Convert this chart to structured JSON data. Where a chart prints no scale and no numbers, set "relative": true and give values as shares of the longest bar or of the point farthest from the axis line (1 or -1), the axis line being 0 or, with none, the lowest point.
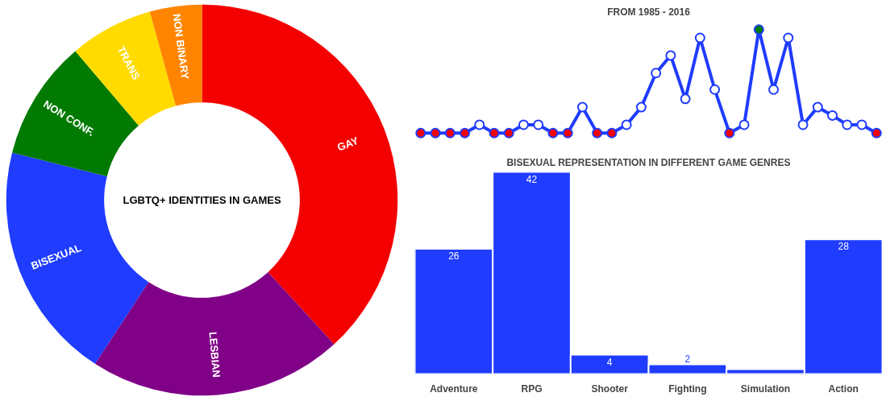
{
  "chart_data": [
    {
      "type": "donut",
      "title": "LGBTQ+ IDENTITIES IN GAMES",
      "categories": [
        "GAY",
        "LESBIAN",
        "BISEXUAL",
        "NON CONF.",
        "TRANS",
        "NON BINARY"
      ],
      "values": [
        38.2,
        21,
        19.7,
        9.9,
        6.9,
        4.3
      ],
      "colors": [
        "#f40000",
        "#800088",
        "#1f3cff",
        "#007a00",
        "#ffdb00",
        "#ff8500"
      ]
    },
    {
      "type": "line",
      "title": "FROM 1985 - 2016",
      "relative": true,
      "marker": "circle",
      "line_style": "solid",
      "categories": [
        null,
        null,
        null,
        null,
        null,
        null,
        null,
        null,
        null,
        null,
        null,
        null,
        null,
        null,
        null,
        null,
        null,
        null,
        null,
        null,
        null,
        null,
        null,
        null,
        null,
        null,
        null,
        null,
        null,
        null,
        null,
        null
      ],
      "series": [
        {
          "color": "#1f3cff",
          "values": [
            0,
            0,
            0,
            0,
            0.08,
            0,
            0,
            0.08,
            0.08,
            0,
            0,
            0.25,
            0,
            0,
            0.08,
            0.25,
            0.58,
            0.75,
            0.33,
            0.92,
            0.42,
            0,
            0.08,
            1,
            0.42,
            0.92,
            0.08,
            0.25,
            0.17,
            0.08,
            0.08,
            0
          ],
          "colors": [
            "#f40000",
            "#f40000",
            "#f40000",
            "#f40000",
            "#ffffff",
            "#f40000",
            "#f40000",
            "#ffffff",
            "#ffffff",
            "#f40000",
            "#f40000",
            "#ffffff",
            "#f40000",
            "#f40000",
            "#ffffff",
            "#ffffff",
            "#ffffff",
            "#ffffff",
            "#ffffff",
            "#ffffff",
            "#ffffff",
            "#f40000",
            "#ffffff",
            "#007a00",
            "#ffffff",
            "#ffffff",
            "#ffffff",
            "#ffffff",
            "#ffffff",
            "#ffffff",
            "#ffffff",
            "#f40000"
          ]
        }
      ]
    },
    {
      "type": "bar",
      "title": "BISEXUAL REPRESENTATION IN DIFFERENT GAME GENRES",
      "tick_labels": "x",
      "categories": [
        "Adventure",
        "RPG",
        "Shooter",
        "Fighting",
        "Simulation",
        "Action"
      ],
      "values": [
        26,
        42,
        4,
        2,
        1,
        28
      ],
      "color": "#1f3cff",
      "value_labels": [
        "26",
        "42",
        "4",
        "2",
        null,
        "28"
      ]
    }
  ]
}
